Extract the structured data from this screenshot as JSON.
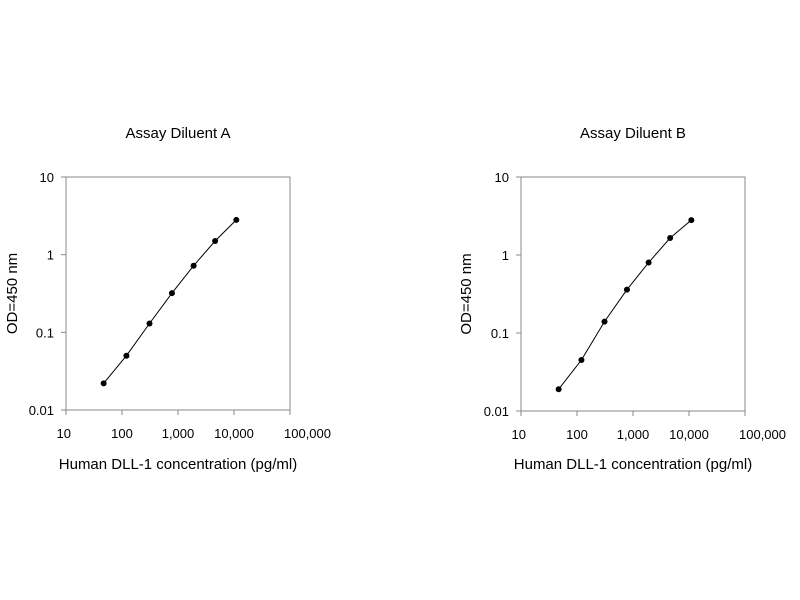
{
  "chart_data": [
    {
      "type": "line",
      "title": "Assay Diluent A",
      "xlabel": "Human DLL-1 concentration (pg/ml)",
      "ylabel": "OD=450 nm",
      "x_scale": "log",
      "y_scale": "log",
      "xlim": [
        10,
        100000
      ],
      "ylim": [
        0.01,
        10
      ],
      "x_ticks": [
        10,
        100,
        1000,
        10000,
        100000
      ],
      "x_tick_labels": [
        "10",
        "100",
        "1,000",
        "10,000",
        "100,000"
      ],
      "y_ticks": [
        0.01,
        0.1,
        1,
        10
      ],
      "y_tick_labels": [
        "0.01",
        "0.1",
        "1",
        "10"
      ],
      "grid": false,
      "legend": "none",
      "series": [
        {
          "x": [
            47,
            120,
            310,
            780,
            1900,
            4600,
            11000
          ],
          "y": [
            0.022,
            0.05,
            0.13,
            0.32,
            0.72,
            1.5,
            2.8
          ]
        }
      ]
    },
    {
      "type": "line",
      "title": "Assay Diluent B",
      "xlabel": "Human DLL-1 concentration (pg/ml)",
      "ylabel": "OD=450 nm",
      "x_scale": "log",
      "y_scale": "log",
      "xlim": [
        10,
        100000
      ],
      "ylim": [
        0.01,
        10
      ],
      "x_ticks": [
        10,
        100,
        1000,
        10000,
        100000
      ],
      "x_tick_labels": [
        "10",
        "100",
        "1,000",
        "10,000",
        "100,000"
      ],
      "y_ticks": [
        0.01,
        0.1,
        1,
        10
      ],
      "y_tick_labels": [
        "0.01",
        "0.1",
        "1",
        "10"
      ],
      "grid": false,
      "legend": "none",
      "series": [
        {
          "x": [
            47,
            120,
            310,
            780,
            1900,
            4600,
            11000
          ],
          "y": [
            0.019,
            0.045,
            0.14,
            0.36,
            0.8,
            1.65,
            2.8
          ]
        }
      ]
    }
  ],
  "colors": {
    "axis": "#888888",
    "line": "#000000",
    "marker": "#000000"
  }
}
